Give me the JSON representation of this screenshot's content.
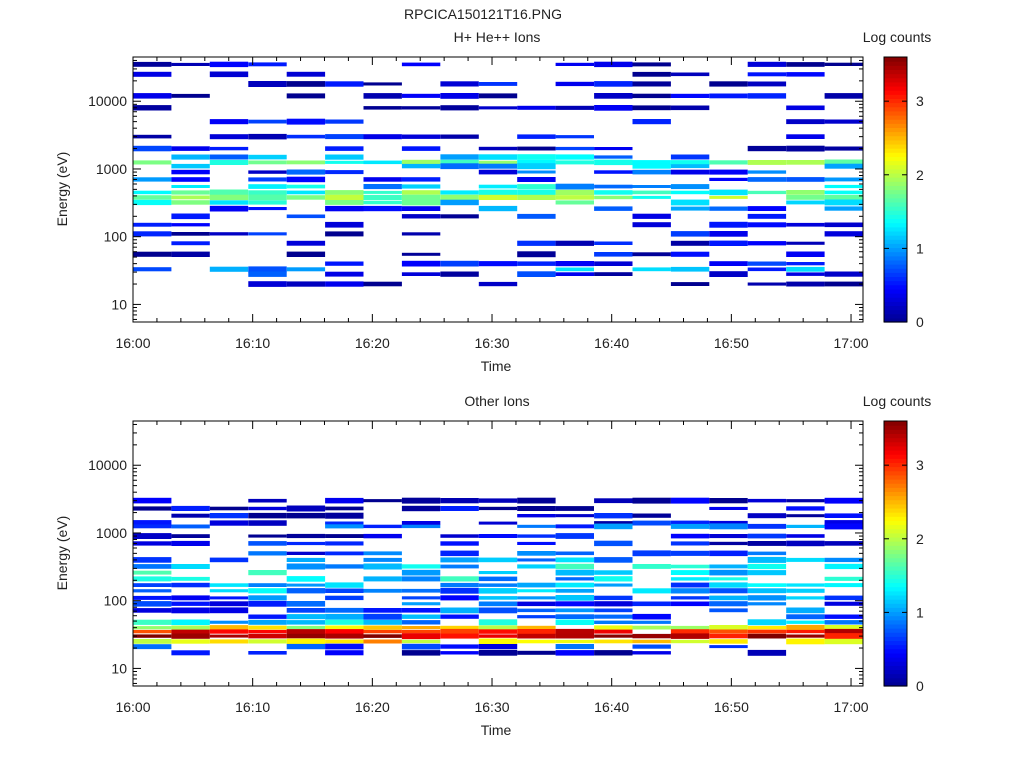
{
  "page_title": "RPCICA150121T16.PNG",
  "colors": {
    "colormap": [
      "#00008f",
      "#0000ff",
      "#0080ff",
      "#00ffff",
      "#80ff80",
      "#ffff00",
      "#ff8000",
      "#ff0000",
      "#800000"
    ]
  },
  "chart_data": [
    {
      "type": "heatmap",
      "title": "H+ He++ Ions",
      "xlabel": "Time",
      "ylabel": "Energy (eV)",
      "yscale": "log",
      "ylim": [
        5.5,
        45000
      ],
      "xticks": [
        "16:00",
        "16:10",
        "16:20",
        "16:30",
        "16:40",
        "16:50",
        "17:00"
      ],
      "yticks": [
        "10",
        "100",
        "1000",
        "10000"
      ],
      "colorbar": {
        "label": "Log counts",
        "ticks": [
          "0",
          "1",
          "2",
          "3"
        ],
        "range": [
          0,
          3.6
        ]
      },
      "time_bins": 19,
      "profile": [
        {
          "e": 35000,
          "v": 0.2
        },
        {
          "e": 25000,
          "v": 0.2
        },
        {
          "e": 18000,
          "v": 0.3
        },
        {
          "e": 12000,
          "v": 0.2
        },
        {
          "e": 8000,
          "v": 0.2
        },
        {
          "e": 5000,
          "v": 0.3
        },
        {
          "e": 3000,
          "v": 0.3
        },
        {
          "e": 2000,
          "v": 0.4
        },
        {
          "e": 1500,
          "v": 1.0
        },
        {
          "e": 1250,
          "v": 1.6
        },
        {
          "e": 1100,
          "v": 1.2
        },
        {
          "e": 900,
          "v": 0.6
        },
        {
          "e": 700,
          "v": 0.7
        },
        {
          "e": 550,
          "v": 1.2
        },
        {
          "e": 450,
          "v": 1.6
        },
        {
          "e": 380,
          "v": 1.8
        },
        {
          "e": 320,
          "v": 1.4
        },
        {
          "e": 260,
          "v": 0.7
        },
        {
          "e": 200,
          "v": 0.4
        },
        {
          "e": 150,
          "v": 0.3
        },
        {
          "e": 110,
          "v": 0.3
        },
        {
          "e": 80,
          "v": 0.3
        },
        {
          "e": 55,
          "v": 0.3
        },
        {
          "e": 40,
          "v": 0.6
        },
        {
          "e": 33,
          "v": 0.9
        },
        {
          "e": 28,
          "v": 0.4
        },
        {
          "e": 20,
          "v": 0.15
        }
      ],
      "gap_rate": 0.45
    },
    {
      "type": "heatmap",
      "title": "Other Ions",
      "xlabel": "Time",
      "ylabel": "Energy (eV)",
      "yscale": "log",
      "ylim": [
        5.5,
        45000
      ],
      "xticks": [
        "16:00",
        "16:10",
        "16:20",
        "16:30",
        "16:40",
        "16:50",
        "17:00"
      ],
      "yticks": [
        "10",
        "100",
        "1000",
        "10000"
      ],
      "colorbar": {
        "label": "Log counts",
        "ticks": [
          "0",
          "1",
          "2",
          "3"
        ],
        "range": [
          0,
          3.6
        ]
      },
      "time_bins": 19,
      "profile": [
        {
          "e": 3000,
          "v": 0.2
        },
        {
          "e": 2300,
          "v": 0.2
        },
        {
          "e": 1800,
          "v": 0.3
        },
        {
          "e": 1400,
          "v": 0.4
        },
        {
          "e": 1250,
          "v": 0.7
        },
        {
          "e": 900,
          "v": 0.3
        },
        {
          "e": 700,
          "v": 0.4
        },
        {
          "e": 500,
          "v": 0.6
        },
        {
          "e": 400,
          "v": 0.9
        },
        {
          "e": 320,
          "v": 1.2
        },
        {
          "e": 260,
          "v": 1.3
        },
        {
          "e": 210,
          "v": 1.2
        },
        {
          "e": 170,
          "v": 1.0
        },
        {
          "e": 140,
          "v": 1.0
        },
        {
          "e": 110,
          "v": 0.8
        },
        {
          "e": 90,
          "v": 0.7
        },
        {
          "e": 72,
          "v": 0.7
        },
        {
          "e": 58,
          "v": 0.8
        },
        {
          "e": 48,
          "v": 1.2
        },
        {
          "e": 40,
          "v": 2.2
        },
        {
          "e": 35,
          "v": 3.2
        },
        {
          "e": 30,
          "v": 3.4
        },
        {
          "e": 25,
          "v": 2.4
        },
        {
          "e": 21,
          "v": 0.6
        },
        {
          "e": 17,
          "v": 0.2
        }
      ],
      "gap_rate": 0.3
    }
  ]
}
